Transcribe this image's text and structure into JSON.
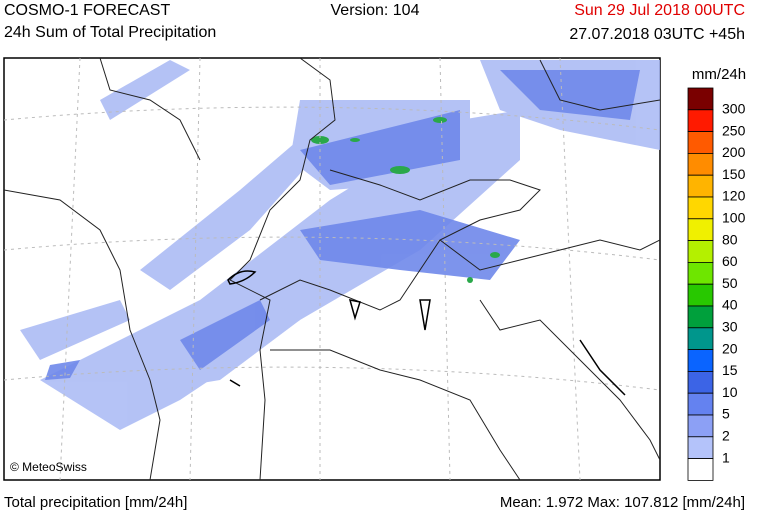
{
  "header": {
    "title": "COSMO-1 FORECAST",
    "subtitle": "24h Sum of Total Precipitation",
    "version": "Version: 104",
    "valid_time": "Sun 29 Jul 2018 00UTC",
    "run_time": "27.07.2018 03UTC +45h"
  },
  "map": {
    "credit": "© MeteoSwiss"
  },
  "legend": {
    "title": "mm/24h",
    "labels": [
      "300",
      "250",
      "200",
      "150",
      "120",
      "100",
      "80",
      "60",
      "50",
      "40",
      "30",
      "20",
      "15",
      "10",
      "5",
      "2",
      "1"
    ],
    "colors": [
      "#7a0000",
      "#ff1a00",
      "#ff5a00",
      "#ff8c00",
      "#ffb400",
      "#ffd700",
      "#f0f000",
      "#b4f000",
      "#6ee600",
      "#28c800",
      "#00a03c",
      "#00968c",
      "#0a64ff",
      "#3c64e6",
      "#6482f0",
      "#8ca0f5",
      "#b4c3fa",
      "#ffffff"
    ]
  },
  "footer": {
    "left": "Total precipitation [mm/24h]",
    "right": "Mean:  1.972 Max: 107.812 [mm/24h]"
  }
}
